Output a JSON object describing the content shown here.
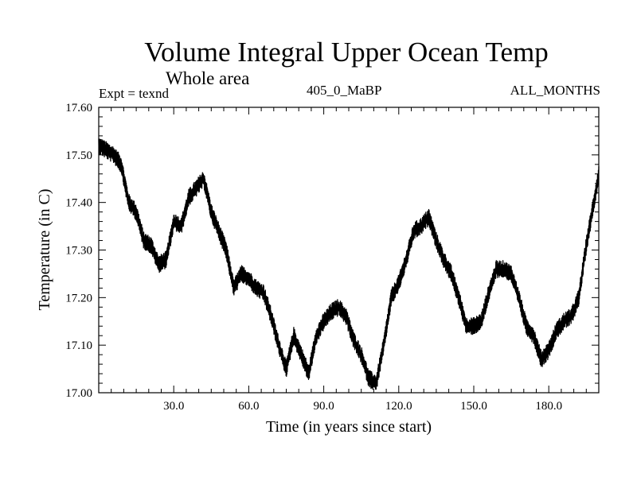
{
  "header": {
    "title": "Volume Integral Upper Ocean Temp",
    "subtitle": "Whole area",
    "expt": "Expt = texnd",
    "case": "405_0_MaBP",
    "months": "ALL_MONTHS"
  },
  "chart_data": {
    "type": "line",
    "title": "Volume Integral Upper Ocean Temp",
    "subtitle": "Whole area",
    "xlabel": "Time (in years since start)",
    "ylabel": "Temperature (in C)",
    "xlim": [
      0,
      200
    ],
    "ylim": [
      17.0,
      17.6
    ],
    "x_ticks": [
      30,
      60,
      90,
      120,
      150,
      180
    ],
    "x_tick_labels": [
      "30.0",
      "60.0",
      "90.0",
      "120.0",
      "150.0",
      "180.0"
    ],
    "y_ticks": [
      17.0,
      17.1,
      17.2,
      17.3,
      17.4,
      17.5,
      17.6
    ],
    "y_tick_labels": [
      "17.00",
      "17.10",
      "17.20",
      "17.30",
      "17.40",
      "17.50",
      "17.60"
    ],
    "grid": false,
    "series": [
      {
        "name": "Temperature",
        "x": [
          0,
          3,
          6,
          9,
          12,
          15,
          18,
          21,
          24,
          27,
          30,
          33,
          36,
          39,
          42,
          45,
          48,
          51,
          54,
          57,
          60,
          63,
          66,
          69,
          72,
          75,
          78,
          81,
          84,
          87,
          90,
          93,
          96,
          99,
          102,
          105,
          108,
          111,
          114,
          117,
          120,
          123,
          126,
          129,
          132,
          135,
          138,
          141,
          144,
          147,
          150,
          153,
          156,
          159,
          162,
          165,
          168,
          171,
          174,
          177,
          180,
          183,
          186,
          189,
          192,
          195,
          198,
          200
        ],
        "values": [
          17.52,
          17.51,
          17.5,
          17.48,
          17.4,
          17.38,
          17.32,
          17.31,
          17.27,
          17.28,
          17.36,
          17.35,
          17.41,
          17.43,
          17.45,
          17.38,
          17.34,
          17.3,
          17.22,
          17.25,
          17.24,
          17.22,
          17.21,
          17.16,
          17.1,
          17.05,
          17.12,
          17.08,
          17.04,
          17.12,
          17.15,
          17.17,
          17.18,
          17.16,
          17.11,
          17.08,
          17.03,
          17.02,
          17.1,
          17.2,
          17.23,
          17.28,
          17.34,
          17.35,
          17.37,
          17.32,
          17.28,
          17.25,
          17.2,
          17.14,
          17.14,
          17.15,
          17.21,
          17.26,
          17.26,
          17.25,
          17.2,
          17.14,
          17.12,
          17.07,
          17.09,
          17.13,
          17.15,
          17.16,
          17.2,
          17.31,
          17.4,
          17.46
        ]
      }
    ]
  }
}
